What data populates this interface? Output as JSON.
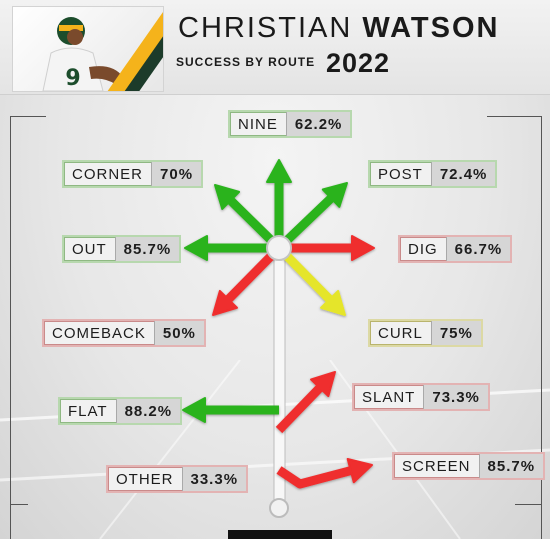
{
  "header": {
    "first_name": "CHRISTIAN",
    "last_name": "WATSON",
    "subtitle": "SUCCESS BY ROUTE",
    "year": "2022"
  },
  "colors": {
    "success": "#2bb31e",
    "fail": "#ef2d2d",
    "mid": "#e5e52a",
    "accent_gold": "#f5b31b",
    "accent_green": "#1c3b2a"
  },
  "routes": [
    {
      "id": "nine",
      "name": "NINE",
      "pct": "62.2%",
      "result": "success"
    },
    {
      "id": "corner",
      "name": "CORNER",
      "pct": "70%",
      "result": "success"
    },
    {
      "id": "post",
      "name": "POST",
      "pct": "72.4%",
      "result": "success"
    },
    {
      "id": "out",
      "name": "OUT",
      "pct": "85.7%",
      "result": "success"
    },
    {
      "id": "dig",
      "name": "DIG",
      "pct": "66.7%",
      "result": "fail"
    },
    {
      "id": "comeback",
      "name": "COMEBACK",
      "pct": "50%",
      "result": "fail"
    },
    {
      "id": "curl",
      "name": "CURL",
      "pct": "75%",
      "result": "mid"
    },
    {
      "id": "flat",
      "name": "FLAT",
      "pct": "88.2%",
      "result": "success"
    },
    {
      "id": "slant",
      "name": "SLANT",
      "pct": "73.3%",
      "result": "fail"
    },
    {
      "id": "screen",
      "name": "SCREEN",
      "pct": "85.7%",
      "result": "fail"
    },
    {
      "id": "other",
      "name": "OTHER",
      "pct": "33.3%",
      "result": "fail"
    }
  ]
}
